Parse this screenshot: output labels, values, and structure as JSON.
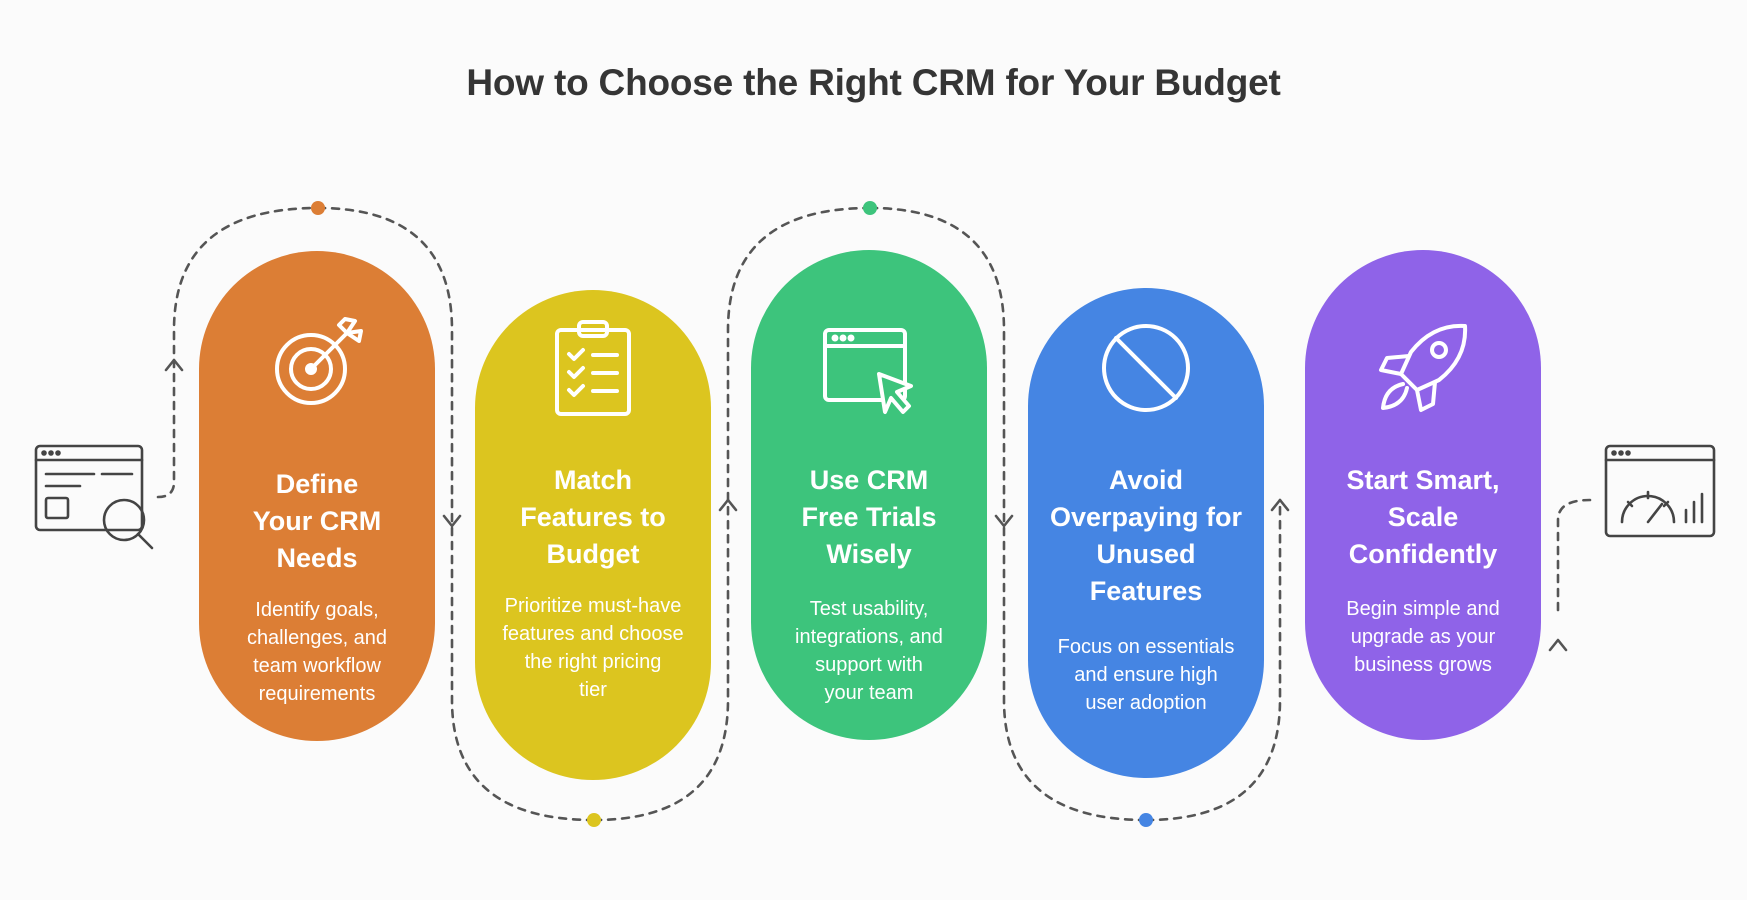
{
  "title": "How to Choose the Right CRM for Your Budget",
  "colors": {
    "step1": "#dc7e35",
    "step2": "#dcc51f",
    "step3": "#3dc47c",
    "step4": "#4585e3",
    "step5": "#8f63e8",
    "connector": "#555555",
    "icon_stroke": "#444444"
  },
  "steps": [
    {
      "icon": "target-arrow-icon",
      "heading": "Define\nYour CRM\nNeeds",
      "description": "Identify goals,\nchallenges, and\nteam workflow\nrequirements"
    },
    {
      "icon": "clipboard-checklist-icon",
      "heading": "Match\nFeatures to\nBudget",
      "description": "Prioritize must-have\nfeatures and choose\nthe right pricing\ntier"
    },
    {
      "icon": "browser-cursor-icon",
      "heading": "Use CRM\nFree Trials\nWisely",
      "description": "Test usability,\nintegrations, and\nsupport with\nyour team"
    },
    {
      "icon": "prohibited-icon",
      "heading": "Avoid\nOverpaying for\nUnused\nFeatures",
      "description": "Focus on essentials\nand ensure high\nuser adoption"
    },
    {
      "icon": "rocket-icon",
      "heading": "Start Smart,\nScale\nConfidently",
      "description": "Begin simple and\nupgrade as your\nbusiness grows"
    }
  ],
  "side_icons": {
    "left": "dashboard-search-icon",
    "right": "speedometer-chart-icon"
  }
}
